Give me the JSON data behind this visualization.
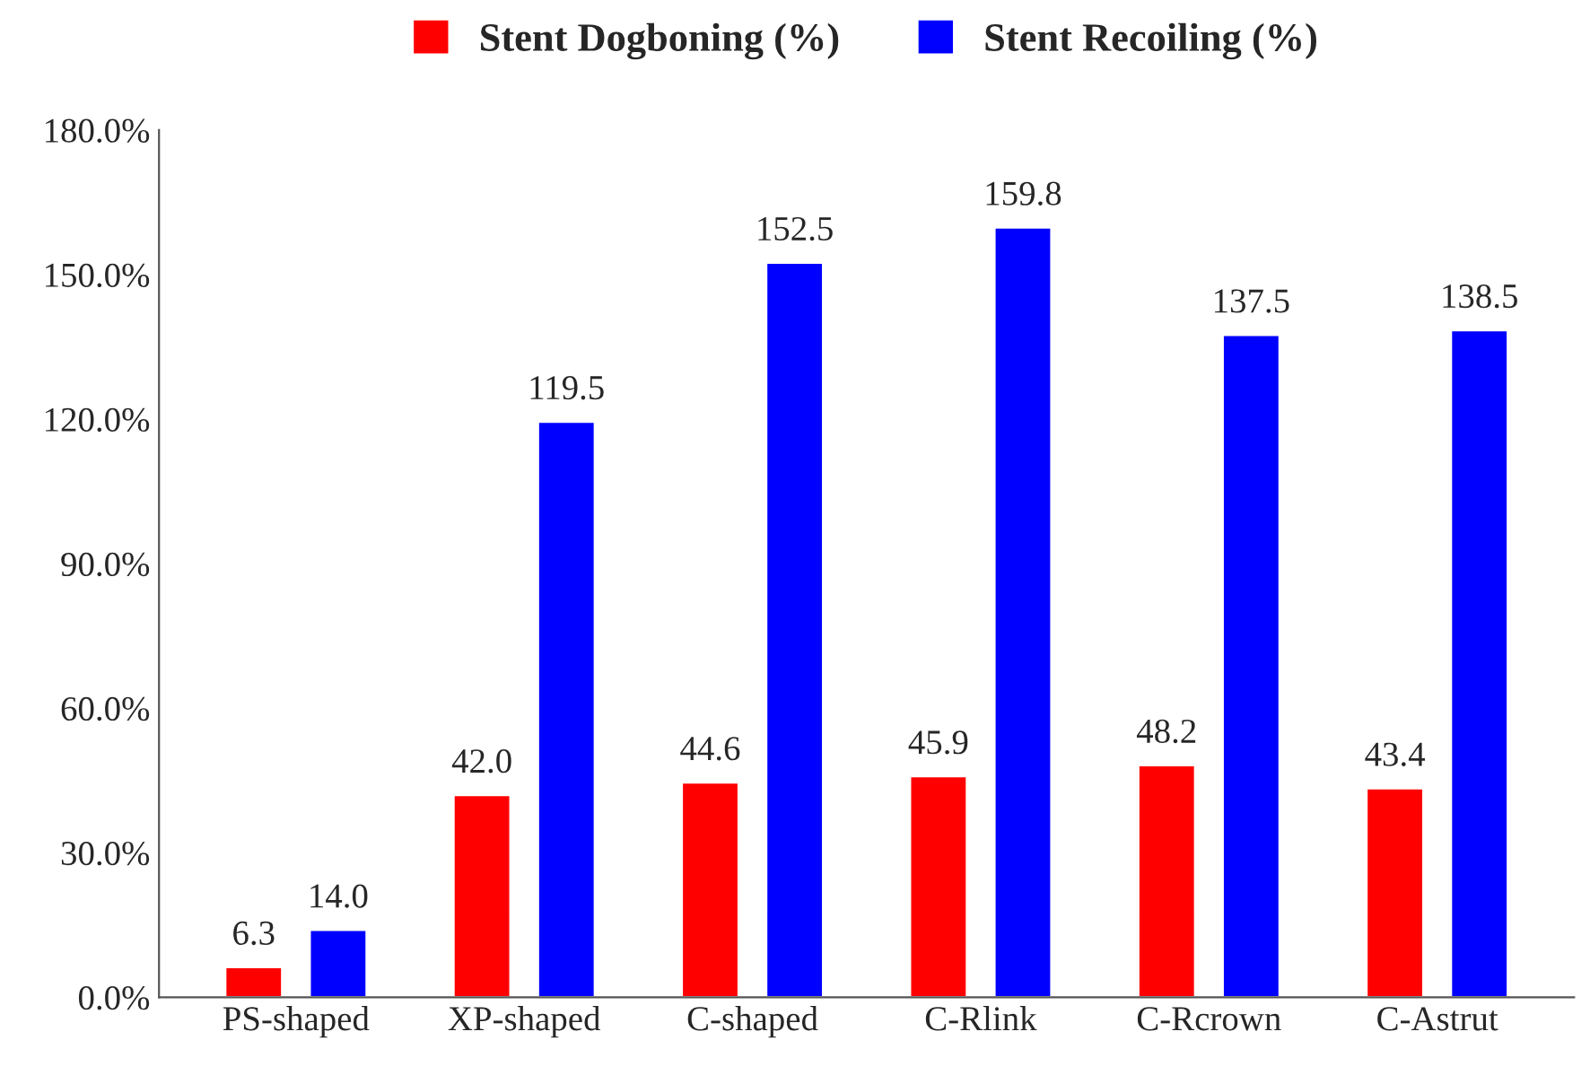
{
  "chart_data": {
    "type": "bar",
    "categories": [
      "PS-shaped",
      "XP-shaped",
      "C-shaped",
      "C-Rlink",
      "C-Rcrown",
      "C-Astrut"
    ],
    "series": [
      {
        "name": "Stent Dogboning (%)",
        "color": "#ff0000",
        "values": [
          6.3,
          42.0,
          44.6,
          45.9,
          48.2,
          43.4
        ],
        "value_labels": [
          "6.3",
          "42.0",
          "44.6",
          "45.9",
          "48.2",
          "43.4"
        ]
      },
      {
        "name": "Stent Recoiling (%)",
        "color": "#0000ff",
        "values": [
          14.0,
          119.5,
          152.5,
          159.8,
          137.5,
          138.5
        ],
        "value_labels": [
          "14.0",
          "119.5",
          "152.5",
          "159.8",
          "137.5",
          "138.5"
        ]
      }
    ],
    "ylim": [
      0,
      180
    ],
    "yticks": [
      {
        "value": 0,
        "label": "0.0%"
      },
      {
        "value": 30,
        "label": "30.0%"
      },
      {
        "value": 60,
        "label": "60.0%"
      },
      {
        "value": 90,
        "label": "90.0%"
      },
      {
        "value": 120,
        "label": "120.0%"
      },
      {
        "value": 150,
        "label": "150.0%"
      },
      {
        "value": 180,
        "label": "180.0%"
      }
    ],
    "grid": false,
    "legend": "top"
  }
}
